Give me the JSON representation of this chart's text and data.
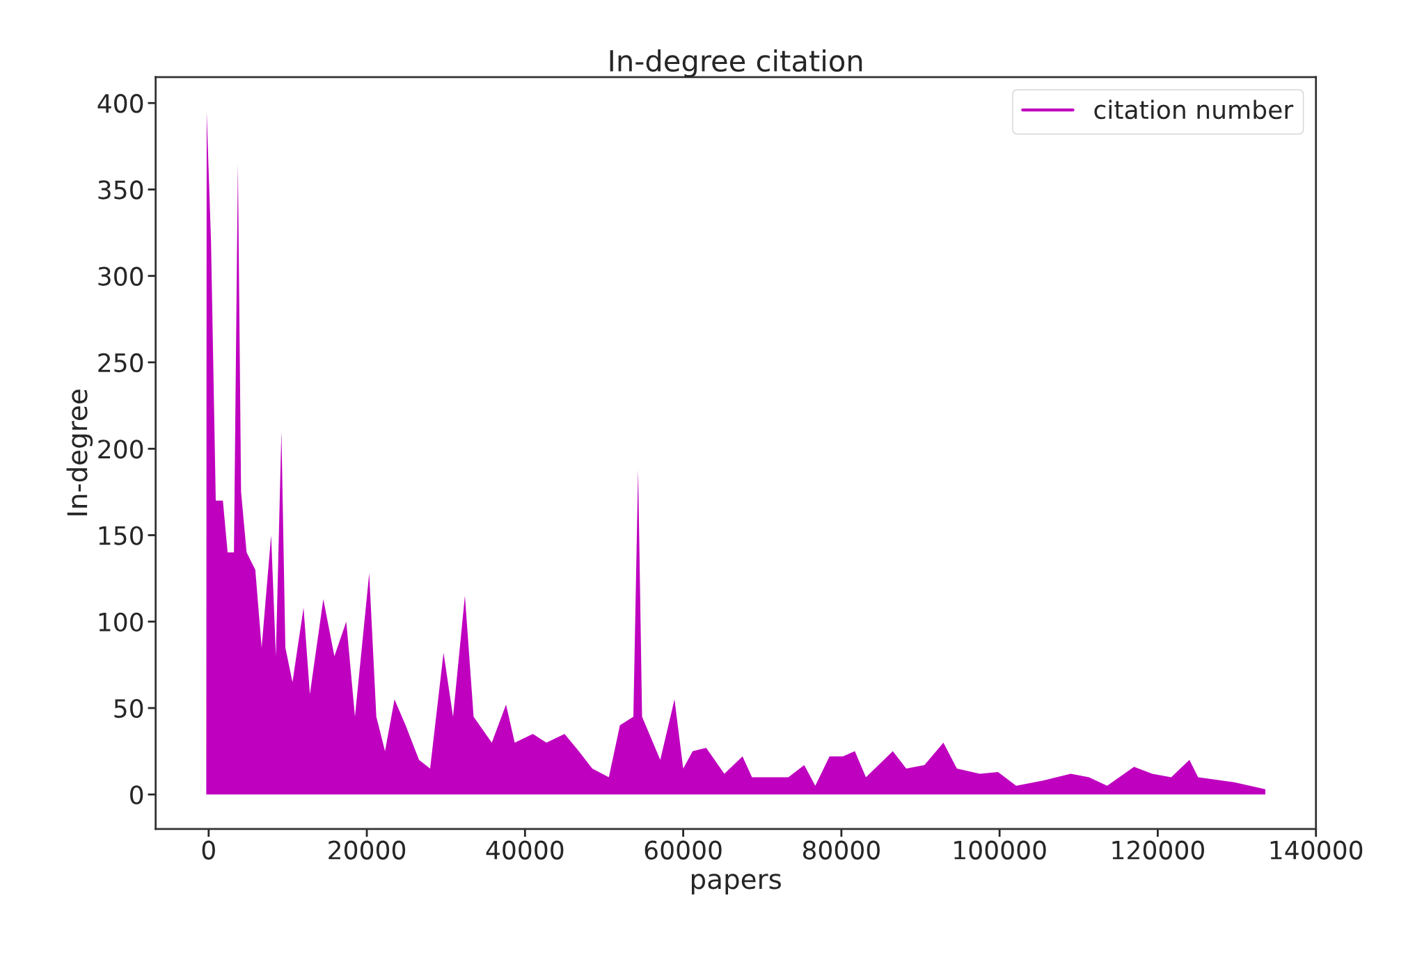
{
  "chart_data": {
    "type": "area",
    "title": "In-degree citation",
    "xlabel": "papers",
    "ylabel": "In-degree",
    "xlim": [
      -6700,
      140000
    ],
    "xticks": [
      0,
      20000,
      40000,
      60000,
      80000,
      100000,
      120000,
      140000
    ],
    "ylim": [
      -20,
      415
    ],
    "yticks": [
      0,
      50,
      100,
      150,
      200,
      250,
      300,
      350,
      400
    ],
    "legend": "top right",
    "grid": false,
    "series": [
      {
        "name": "citation number",
        "color": "#bf00bf",
        "x": [
          -300,
          -250,
          300,
          900,
          1800,
          2400,
          3200,
          3700,
          4100,
          4800,
          5900,
          6700,
          7900,
          8500,
          9200,
          9700,
          10600,
          12000,
          12800,
          14500,
          15900,
          17400,
          18500,
          20300,
          21200,
          22300,
          23500,
          24900,
          26600,
          28000,
          29700,
          30900,
          32400,
          33500,
          35800,
          37600,
          38700,
          41000,
          42700,
          45000,
          46800,
          48500,
          50600,
          52000,
          53700,
          54300,
          54800,
          57100,
          58900,
          60000,
          61200,
          62900,
          65200,
          67500,
          68700,
          71000,
          73300,
          75300,
          76700,
          78500,
          80200,
          81700,
          83100,
          86500,
          88200,
          90500,
          92900,
          94600,
          97500,
          99800,
          102100,
          105500,
          109000,
          111300,
          113600,
          117000,
          119300,
          121700,
          124000,
          125100,
          129700,
          133600
        ],
        "values": [
          0,
          395,
          320,
          170,
          170,
          140,
          140,
          365,
          175,
          140,
          130,
          85,
          150,
          80,
          210,
          85,
          65,
          108,
          58,
          113,
          80,
          100,
          45,
          128,
          45,
          25,
          55,
          40,
          20,
          15,
          82,
          45,
          115,
          45,
          30,
          52,
          30,
          35,
          30,
          35,
          25,
          15,
          10,
          40,
          45,
          188,
          45,
          20,
          55,
          15,
          25,
          27,
          12,
          22,
          10,
          10,
          10,
          17,
          5,
          22,
          22,
          25,
          10,
          25,
          15,
          17,
          30,
          15,
          12,
          13,
          5,
          8,
          12,
          10,
          5,
          16,
          12,
          10,
          20,
          10,
          7,
          3
        ]
      }
    ]
  }
}
